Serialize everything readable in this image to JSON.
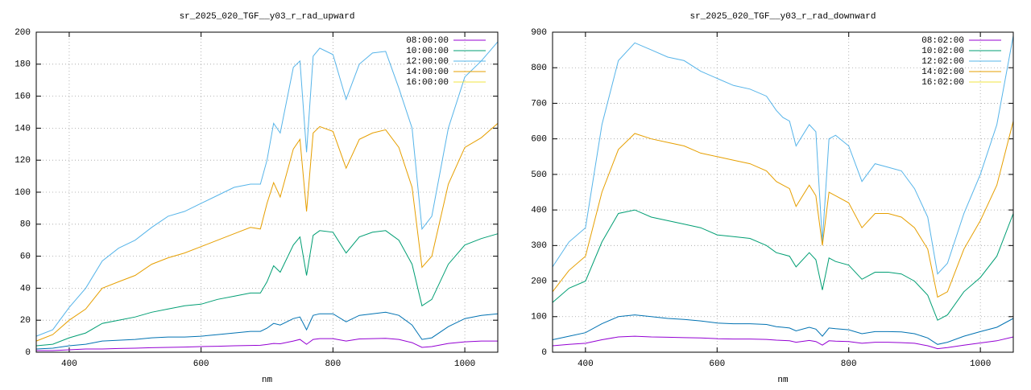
{
  "chart_data": [
    {
      "type": "line",
      "title": "sr_2025_020_TGF__y03_r_rad_upward",
      "x_label": "nm",
      "x": [
        350,
        375,
        400,
        425,
        450,
        475,
        500,
        525,
        550,
        575,
        600,
        625,
        650,
        675,
        690,
        700,
        710,
        720,
        740,
        750,
        760,
        770,
        780,
        800,
        820,
        840,
        860,
        880,
        900,
        920,
        935,
        950,
        975,
        1000,
        1025,
        1050
      ],
      "xlim": [
        350,
        1050
      ],
      "xticks": [
        400,
        600,
        800,
        1000
      ],
      "ylim": [
        0,
        200
      ],
      "yticks": [
        0,
        20,
        40,
        60,
        80,
        100,
        120,
        140,
        160,
        180,
        200
      ],
      "grid": true,
      "legend": "top-right",
      "series": [
        {
          "name": "08:00:00",
          "color": "#9400d3",
          "values": [
            1,
            1,
            1.5,
            2,
            2,
            2.3,
            2.5,
            2.8,
            3,
            3.2,
            3.5,
            3.7,
            4,
            4.2,
            4.3,
            4.8,
            5.5,
            5.3,
            7,
            8,
            5,
            8,
            8.5,
            8.5,
            7,
            8.3,
            8.5,
            8.7,
            8,
            6,
            3,
            3.5,
            5.5,
            6.5,
            7,
            7
          ]
        },
        {
          "name": "10:00:00",
          "color": "#009e73",
          "values": [
            4,
            5,
            9,
            12,
            18,
            20,
            22,
            25,
            27,
            29,
            30,
            33,
            35,
            37,
            37,
            44,
            54,
            50,
            67,
            72,
            48,
            73,
            76,
            75,
            62,
            72,
            75,
            76,
            70,
            55,
            29,
            33,
            55,
            67,
            71,
            74
          ]
        },
        {
          "name": "12:00:00",
          "color": "#56b4e9",
          "values": [
            10,
            14,
            28,
            40,
            57,
            65,
            70,
            78,
            85,
            88,
            93,
            98,
            103,
            105,
            105,
            120,
            143,
            137,
            178,
            182,
            125,
            185,
            190,
            186,
            158,
            180,
            187,
            188,
            165,
            140,
            77,
            85,
            140,
            172,
            182,
            194
          ]
        },
        {
          "name": "14:00:00",
          "color": "#e69f00",
          "values": [
            7,
            11,
            20,
            27,
            40,
            44,
            48,
            55,
            59,
            62,
            66,
            70,
            74,
            78,
            77,
            93,
            106,
            97,
            127,
            133,
            88,
            137,
            141,
            138,
            115,
            133,
            137,
            139,
            128,
            103,
            53,
            60,
            105,
            128,
            134,
            143
          ]
        },
        {
          "name": "16:00:00",
          "color": "#f0e442",
          "values": [
            null,
            null,
            null,
            null,
            null,
            null,
            null,
            null,
            null,
            null,
            null,
            null,
            null,
            null,
            null,
            null,
            null,
            null,
            null,
            null,
            null,
            null,
            null,
            null,
            null,
            null,
            null,
            null,
            null,
            null,
            null,
            null,
            null,
            null,
            null,
            null
          ]
        },
        {
          "color": "#0072b2",
          "values": [
            2,
            2.5,
            4,
            5,
            7,
            7.5,
            8,
            9,
            9.5,
            9.5,
            10,
            11,
            12,
            13,
            13,
            15,
            18,
            17,
            21,
            22,
            14,
            23,
            24,
            24,
            19,
            23,
            24,
            25,
            23,
            17,
            8,
            9,
            16,
            21,
            23,
            24
          ]
        }
      ]
    },
    {
      "type": "line",
      "title": "sr_2025_020_TGF__y03_r_rad_downward",
      "x_label": "nm",
      "x": [
        350,
        375,
        400,
        425,
        450,
        475,
        500,
        525,
        550,
        575,
        600,
        625,
        650,
        675,
        690,
        700,
        710,
        720,
        740,
        750,
        760,
        770,
        780,
        800,
        820,
        840,
        860,
        880,
        900,
        920,
        935,
        950,
        975,
        1000,
        1025,
        1050
      ],
      "xlim": [
        350,
        1050
      ],
      "xticks": [
        400,
        600,
        800,
        1000
      ],
      "ylim": [
        0,
        900
      ],
      "yticks": [
        0,
        100,
        200,
        300,
        400,
        500,
        600,
        700,
        800,
        900
      ],
      "grid": true,
      "legend": "top-right",
      "series": [
        {
          "name": "08:02:00",
          "color": "#9400d3",
          "values": [
            18,
            22,
            25,
            35,
            43,
            45,
            43,
            42,
            41,
            40,
            38,
            37,
            37,
            36,
            34,
            33,
            32,
            28,
            33,
            30,
            20,
            32,
            31,
            30,
            25,
            28,
            28,
            27,
            25,
            18,
            10,
            13,
            20,
            26,
            32,
            43
          ]
        },
        {
          "name": "10:02:00",
          "color": "#009e73",
          "values": [
            140,
            180,
            200,
            310,
            390,
            400,
            380,
            370,
            360,
            350,
            330,
            325,
            320,
            300,
            280,
            275,
            270,
            240,
            280,
            260,
            175,
            265,
            255,
            245,
            205,
            225,
            225,
            220,
            200,
            160,
            90,
            105,
            170,
            210,
            270,
            390
          ]
        },
        {
          "name": "12:02:00",
          "color": "#56b4e9",
          "values": [
            240,
            310,
            350,
            640,
            820,
            870,
            850,
            830,
            820,
            790,
            770,
            750,
            740,
            720,
            680,
            660,
            650,
            580,
            640,
            620,
            310,
            600,
            610,
            580,
            480,
            530,
            520,
            510,
            460,
            380,
            220,
            250,
            390,
            500,
            640,
            890
          ]
        },
        {
          "name": "14:02:00",
          "color": "#e69f00",
          "values": [
            170,
            230,
            270,
            450,
            570,
            615,
            600,
            590,
            580,
            560,
            550,
            540,
            530,
            510,
            480,
            470,
            460,
            410,
            470,
            440,
            300,
            450,
            440,
            420,
            350,
            390,
            390,
            380,
            350,
            290,
            155,
            170,
            290,
            370,
            470,
            650
          ]
        },
        {
          "name": "16:02:00",
          "color": "#f0e442",
          "values": [
            null,
            null,
            null,
            null,
            null,
            null,
            null,
            null,
            null,
            null,
            null,
            null,
            null,
            null,
            null,
            null,
            null,
            null,
            null,
            null,
            null,
            null,
            null,
            null,
            null,
            null,
            null,
            null,
            null,
            null,
            null,
            null,
            null,
            null,
            null,
            null
          ]
        },
        {
          "color": "#0072b2",
          "values": [
            35,
            45,
            55,
            80,
            100,
            105,
            100,
            95,
            92,
            88,
            82,
            80,
            80,
            78,
            72,
            70,
            68,
            60,
            70,
            65,
            45,
            68,
            66,
            63,
            52,
            58,
            58,
            57,
            52,
            40,
            22,
            28,
            45,
            58,
            70,
            95
          ]
        }
      ]
    }
  ]
}
